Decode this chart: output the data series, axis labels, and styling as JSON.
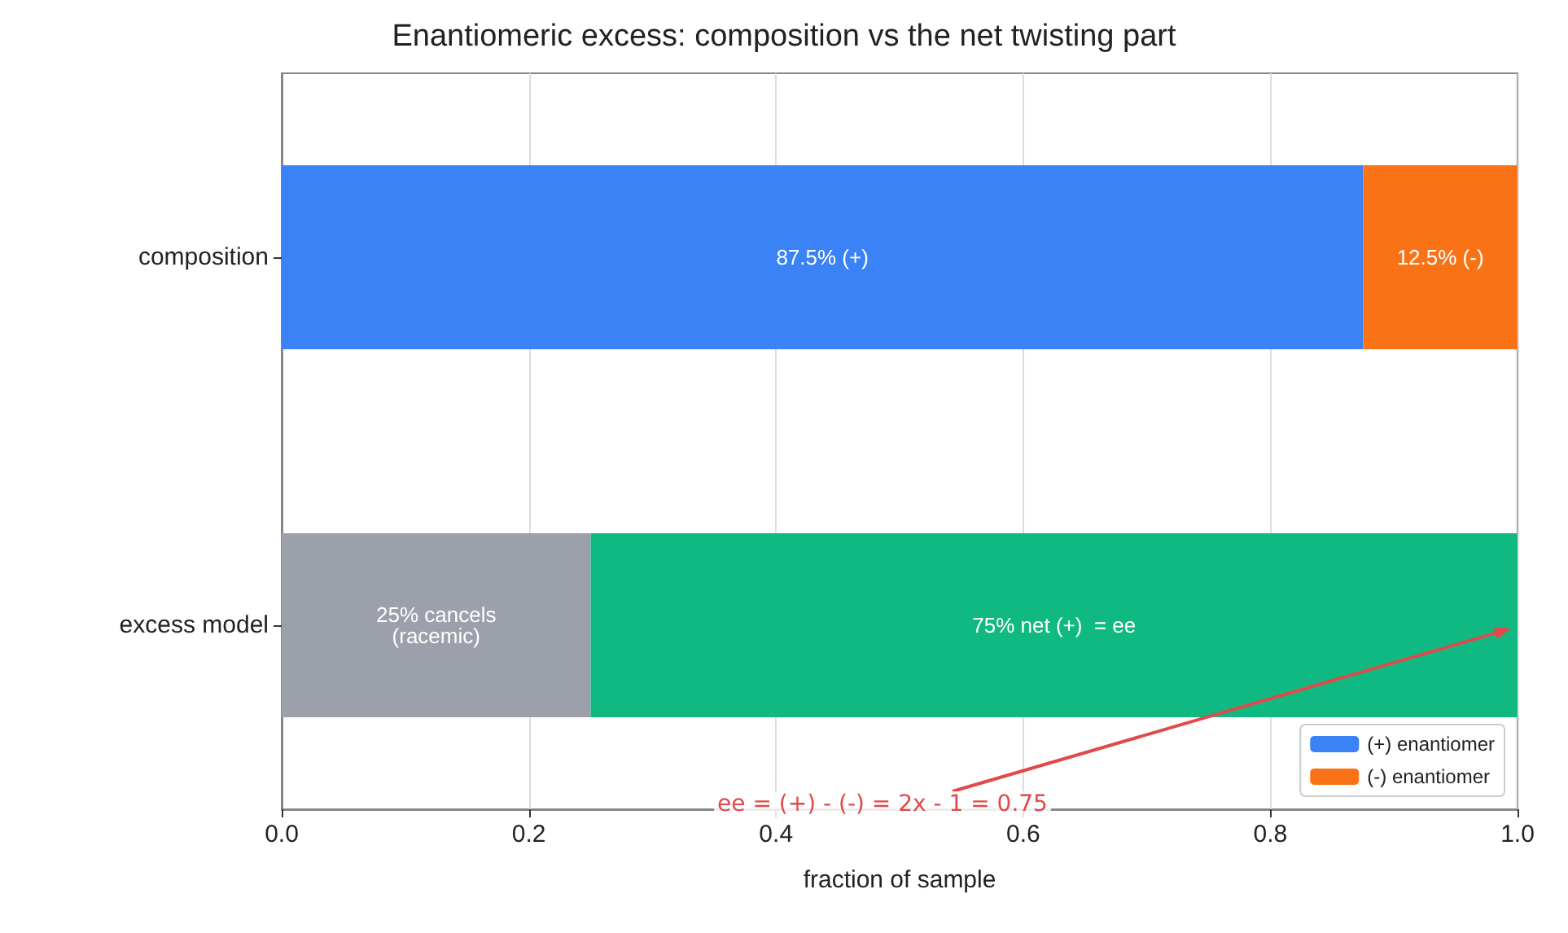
{
  "chart_data": {
    "type": "bar",
    "orientation": "horizontal",
    "stacked": true,
    "title": "Enantiomeric excess: composition vs the net twisting part",
    "xlabel": "fraction of sample",
    "categories": [
      "composition",
      "excess model"
    ],
    "series": [
      {
        "name": "(+) enantiomer",
        "color": "#3b82f6",
        "values": [
          0.875,
          null
        ],
        "value_labels": [
          "87.5% (+)",
          null
        ]
      },
      {
        "name": "(-) enantiomer",
        "color": "#f97316",
        "values": [
          0.125,
          null
        ],
        "value_labels": [
          "12.5% (-)",
          null
        ]
      },
      {
        "color": "#9ca0aa",
        "values": [
          null,
          0.25
        ],
        "value_labels": [
          null,
          "25% cancels\n(racemic)"
        ]
      },
      {
        "color": "#10b981",
        "values": [
          null,
          0.75
        ],
        "value_labels": [
          null,
          "75% net (+)  = ee"
        ]
      }
    ],
    "xlim": [
      0,
      1
    ],
    "xticks": [
      {
        "value": 0,
        "label": "0.0"
      },
      {
        "value": 0.2,
        "label": "0.2"
      },
      {
        "value": 0.4,
        "label": "0.4"
      },
      {
        "value": 0.6,
        "label": "0.6"
      },
      {
        "value": 0.8,
        "label": "0.8"
      },
      {
        "value": 1,
        "label": "1.0"
      }
    ],
    "grid": "x",
    "legend": "bottom right",
    "annotations": [
      "ee = (+) - (-) = 2x - 1 = 0.75"
    ]
  }
}
